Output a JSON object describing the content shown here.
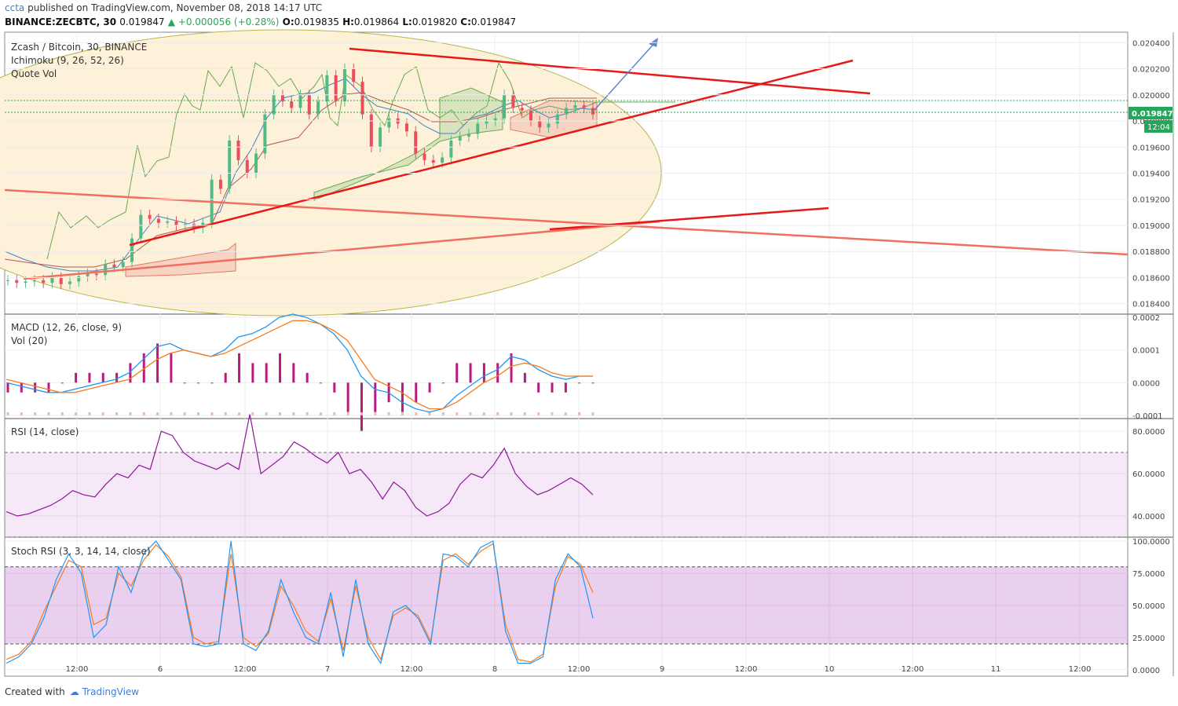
{
  "header": {
    "user": "ccta",
    "published": "published on TradingView.com, November 08, 2018 14:17 UTC",
    "symbol": "BINANCE:ZECBTC, 30",
    "last": "0.019847",
    "change": "▲ +0.000056 (+0.28%)",
    "o_label": "O:",
    "o": "0.019835",
    "h_label": "H:",
    "h": "0.019864",
    "l_label": "L:",
    "l": "0.019820",
    "c_label": "C:",
    "c": "0.019847"
  },
  "footer": {
    "created": "Created with",
    "brand": "TradingView"
  },
  "chart_data": [
    {
      "type": "line",
      "title": "Zcash / Bitcoin, 30, BINANCE",
      "indicators": [
        "Ichimoku (9, 26, 52, 26)",
        "Quote Vol"
      ],
      "yticks": [
        "0.020400",
        "0.020200",
        "0.020000",
        "0.019800",
        "0.019600",
        "0.019400",
        "0.019200",
        "0.019000",
        "0.018800",
        "0.018600",
        "0.018400"
      ],
      "ylim": [
        0.01832,
        0.02048
      ],
      "price_label": "0.019847",
      "time_label": "12:04",
      "x_ticks": [
        "12:00",
        "6",
        "12:00",
        "7",
        "12:00",
        "8",
        "12:00",
        "9",
        "12:00",
        "10",
        "12:00",
        "11",
        "12:00"
      ],
      "close_series": [
        0.01858,
        0.01856,
        0.01857,
        0.01858,
        0.01856,
        0.0186,
        0.01855,
        0.01857,
        0.01861,
        0.01863,
        0.01862,
        0.0187,
        0.01868,
        0.01872,
        0.0189,
        0.01908,
        0.01905,
        0.01902,
        0.01903,
        0.019,
        0.01901,
        0.01898,
        0.01902,
        0.01935,
        0.01928,
        0.01965,
        0.0195,
        0.0194,
        0.01955,
        0.01985,
        0.02,
        0.01995,
        0.0199,
        0.02,
        0.01985,
        0.01995,
        0.02015,
        0.01995,
        0.0202,
        0.0201,
        0.01985,
        0.0196,
        0.01975,
        0.01982,
        0.01978,
        0.01972,
        0.01955,
        0.0195,
        0.01948,
        0.01952,
        0.01965,
        0.01968,
        0.0197,
        0.01978,
        0.0198,
        0.01982,
        0.02,
        0.0199,
        0.01988,
        0.0198,
        0.01975,
        0.01978,
        0.01985,
        0.0199,
        0.01992,
        0.0199,
        0.01985
      ]
    },
    {
      "type": "line",
      "title": "MACD (12, 26, close, 9)",
      "indicators": [
        "Vol (20)"
      ],
      "yticks": [
        "0.0002",
        "0.0001",
        "0.0000",
        "-0.0001"
      ],
      "ylim": [
        -0.00011,
        0.00021
      ],
      "series": [
        {
          "name": "MACD",
          "values": [
            0.0,
            -1e-05,
            -2e-05,
            -3e-05,
            -3e-05,
            -2e-05,
            -1e-05,
            0.0,
            1e-05,
            3e-05,
            7e-05,
            0.00011,
            0.00012,
            0.0001,
            9e-05,
            8e-05,
            0.0001,
            0.00014,
            0.00015,
            0.00017,
            0.0002,
            0.00021,
            0.0002,
            0.00018,
            0.00015,
            0.0001,
            2e-05,
            -2e-05,
            -3e-05,
            -6e-05,
            -8e-05,
            -9e-05,
            -8e-05,
            -4e-05,
            -1e-05,
            2e-05,
            4e-05,
            8e-05,
            7e-05,
            4e-05,
            2e-05,
            1e-05,
            2e-05,
            2e-05
          ]
        },
        {
          "name": "Signal",
          "values": [
            1e-05,
            0.0,
            -1e-05,
            -2e-05,
            -3e-05,
            -3e-05,
            -2e-05,
            -1e-05,
            0.0,
            1e-05,
            4e-05,
            7e-05,
            9e-05,
            0.0001,
            9e-05,
            8e-05,
            9e-05,
            0.00011,
            0.00013,
            0.00015,
            0.00017,
            0.00019,
            0.00019,
            0.00018,
            0.00016,
            0.00013,
            7e-05,
            1e-05,
            -1e-05,
            -3e-05,
            -6e-05,
            -8e-05,
            -8e-05,
            -6e-05,
            -3e-05,
            0.0,
            2e-05,
            5e-05,
            6e-05,
            5e-05,
            3e-05,
            2e-05,
            2e-05,
            2e-05
          ]
        }
      ]
    },
    {
      "type": "line",
      "title": "RSI (14, close)",
      "yticks": [
        "80.0000",
        "60.0000",
        "40.0000"
      ],
      "ylim": [
        30,
        86
      ],
      "bands": [
        30,
        70
      ],
      "values": [
        42,
        40,
        41,
        43,
        45,
        48,
        52,
        50,
        49,
        55,
        60,
        58,
        64,
        62,
        80,
        78,
        70,
        66,
        64,
        62,
        65,
        62,
        88,
        60,
        64,
        68,
        75,
        72,
        68,
        65,
        70,
        60,
        62,
        56,
        48,
        56,
        52,
        44,
        40,
        42,
        46,
        55,
        60,
        58,
        64,
        72,
        60,
        54,
        50,
        52,
        55,
        58,
        55,
        50
      ]
    },
    {
      "type": "line",
      "title": "Stoch RSI (3, 3, 14, 14, close)",
      "yticks": [
        "100.0000",
        "75.0000",
        "50.0000",
        "25.0000",
        "0.0000"
      ],
      "ylim": [
        -5,
        103
      ],
      "bands": [
        20,
        80
      ],
      "series": [
        {
          "name": "K",
          "values": [
            5,
            10,
            20,
            40,
            70,
            90,
            75,
            25,
            35,
            80,
            60,
            90,
            100,
            85,
            70,
            20,
            18,
            20,
            100,
            20,
            15,
            30,
            70,
            45,
            25,
            20,
            60,
            10,
            70,
            20,
            5,
            45,
            50,
            40,
            20,
            90,
            88,
            80,
            95,
            100,
            30,
            5,
            5,
            10,
            70,
            90,
            80,
            40
          ]
        },
        {
          "name": "D",
          "values": [
            8,
            12,
            22,
            45,
            65,
            85,
            80,
            35,
            40,
            75,
            65,
            85,
            97,
            88,
            72,
            25,
            20,
            22,
            90,
            25,
            18,
            28,
            65,
            50,
            30,
            22,
            55,
            15,
            65,
            25,
            8,
            42,
            48,
            42,
            22,
            85,
            90,
            82,
            92,
            98,
            35,
            8,
            6,
            12,
            65,
            88,
            82,
            60
          ]
        }
      ]
    }
  ]
}
